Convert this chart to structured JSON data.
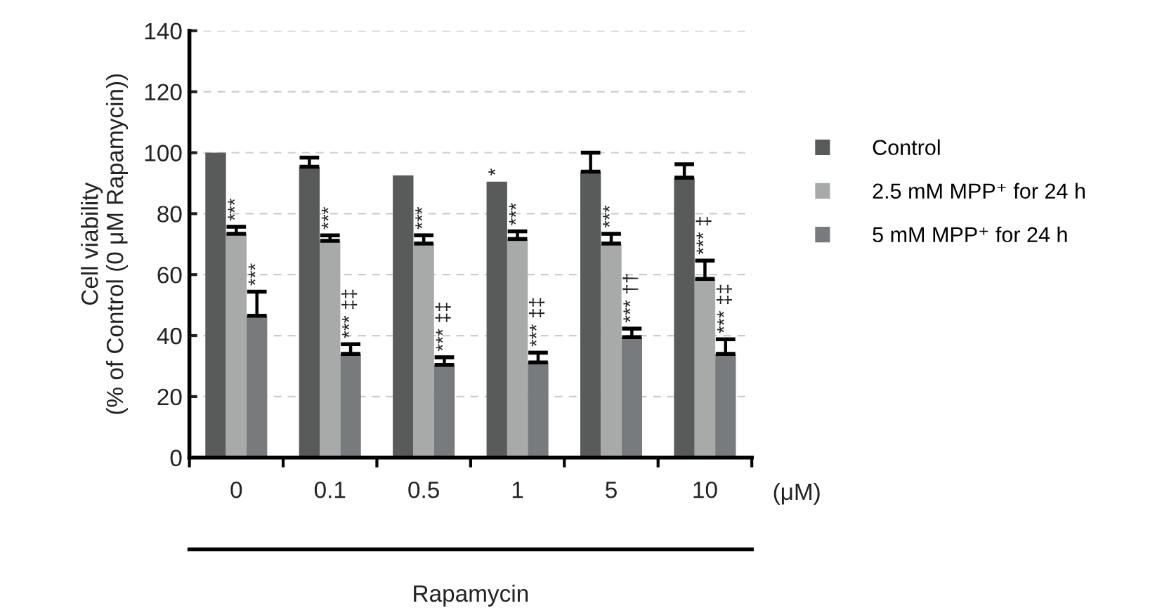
{
  "chart_data": {
    "type": "bar",
    "ylabel": "Cell viability\n(% of Control (0 μM Rapamycin))",
    "xlabel": "Rapamycin",
    "categories": [
      "0",
      "0.1",
      "0.5",
      "1",
      "5",
      "10"
    ],
    "series": [
      {
        "name": "Control",
        "color": "#595b5b",
        "values": [
          100,
          95.4,
          92.6,
          90.5,
          93.8,
          91.8
        ],
        "errors": [
          null,
          [
            95.4,
            98.4
          ],
          null,
          null,
          [
            93.8,
            100
          ],
          [
            91.8,
            96.2
          ]
        ],
        "value_labels": [
          null,
          null,
          null,
          "*",
          null,
          null
        ]
      },
      {
        "name": "2.5 mM MPP⁺ for 24 h",
        "color": "#a8aaaa",
        "values": [
          73.4,
          71.1,
          70.2,
          71.7,
          70.2,
          58.6
        ],
        "errors": [
          [
            73.4,
            75.7
          ],
          [
            71.1,
            72.9
          ],
          [
            70.2,
            72.9
          ],
          [
            71.7,
            74.2
          ],
          [
            70.2,
            73.4
          ],
          [
            58.6,
            64.6
          ]
        ],
        "value_labels": [
          "***",
          "***",
          "***",
          "***",
          "***",
          "*** ‡"
        ]
      },
      {
        "name": "5 mM MPP⁺ for 24 h",
        "color": "#777b7e",
        "values": [
          46.5,
          34,
          30.4,
          31.2,
          39.5,
          34
        ],
        "errors": [
          [
            46.5,
            54.4
          ],
          [
            34,
            37.2
          ],
          [
            30.4,
            32.9
          ],
          [
            31.2,
            34.4
          ],
          [
            39.5,
            42.3
          ],
          [
            34,
            38.8
          ]
        ],
        "value_labels": [
          "***",
          "*** ‡‡",
          "*** ‡‡",
          "*** ‡‡",
          "*** ††",
          "*** ‡‡"
        ]
      }
    ],
    "ylim": [
      0,
      140
    ],
    "yticks": [
      0,
      20,
      40,
      60,
      80,
      100,
      120,
      140
    ],
    "grid": "y",
    "legend": "right",
    "annotations": [
      "(μM)"
    ]
  }
}
